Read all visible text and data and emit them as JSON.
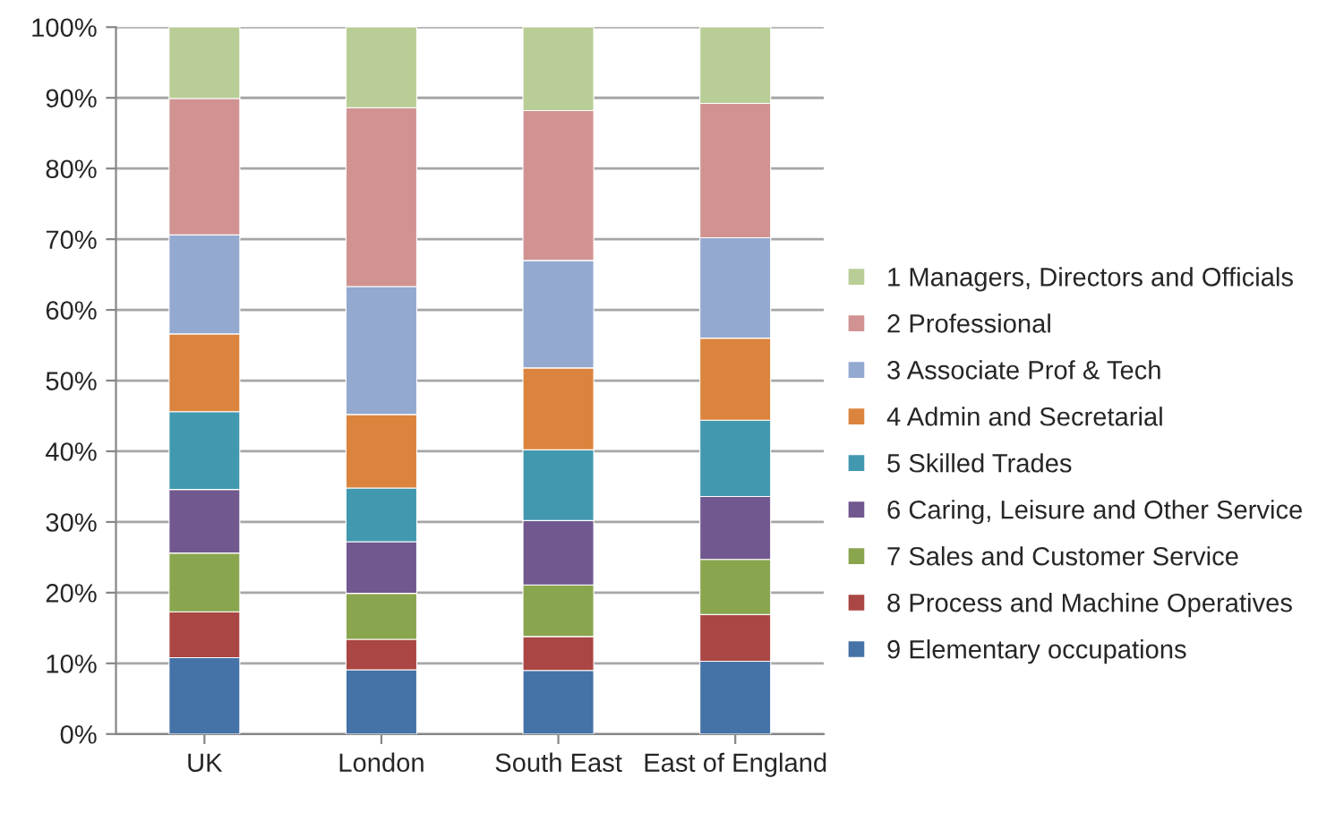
{
  "chart_data": {
    "type": "bar",
    "stacked": true,
    "categories": [
      "UK",
      "London",
      "South East",
      "East of England"
    ],
    "series": [
      {
        "name": "9 Elementary occupations",
        "color": "#4572a7",
        "values": [
          10.8,
          9.1,
          9.0,
          10.3
        ]
      },
      {
        "name": "8 Process and Machine Operatives",
        "color": "#aa4643",
        "values": [
          6.5,
          4.3,
          4.8,
          6.6
        ]
      },
      {
        "name": "7 Sales and Customer Service",
        "color": "#89a54e",
        "values": [
          8.3,
          6.5,
          7.3,
          7.8
        ]
      },
      {
        "name": "6 Caring, Leisure and Other Service",
        "color": "#71588f",
        "values": [
          9.0,
          7.3,
          9.1,
          8.9
        ]
      },
      {
        "name": "5 Skilled Trades",
        "color": "#4198af",
        "values": [
          11.0,
          7.6,
          10.0,
          10.8
        ]
      },
      {
        "name": "4 Admin and Secretarial",
        "color": "#db843d",
        "values": [
          11.0,
          10.4,
          11.6,
          11.6
        ]
      },
      {
        "name": "3 Associate Prof & Tech",
        "color": "#93a9cf",
        "values": [
          14.0,
          18.1,
          15.2,
          14.2
        ]
      },
      {
        "name": "2 Professional",
        "color": "#d19392",
        "values": [
          19.3,
          25.3,
          21.2,
          19.0
        ]
      },
      {
        "name": "1 Managers, Directors and Officials",
        "color": "#b9cd96",
        "values": [
          10.1,
          11.4,
          11.8,
          10.8
        ]
      }
    ],
    "ylim": [
      0,
      100
    ],
    "yticks": [
      {
        "value": 0,
        "label": "0%"
      },
      {
        "value": 10,
        "label": "10%"
      },
      {
        "value": 20,
        "label": "20%"
      },
      {
        "value": 30,
        "label": "30%"
      },
      {
        "value": 40,
        "label": "40%"
      },
      {
        "value": 50,
        "label": "50%"
      },
      {
        "value": 60,
        "label": "60%"
      },
      {
        "value": 70,
        "label": "70%"
      },
      {
        "value": 80,
        "label": "80%"
      },
      {
        "value": 90,
        "label": "90%"
      },
      {
        "value": 100,
        "label": "100%"
      }
    ],
    "grid": "y",
    "legend": "right"
  }
}
